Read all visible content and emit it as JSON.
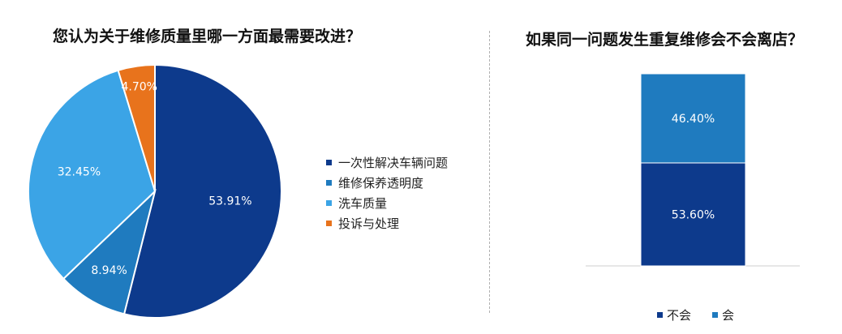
{
  "chart_data": [
    {
      "type": "pie",
      "title": "您认为关于维修质量里哪一方面最需要改进？",
      "categories": [
        "一次性解决车辆问题",
        "维修保养透明度",
        "洗车质量",
        "投诉与处理"
      ],
      "values": [
        53.91,
        8.94,
        32.45,
        4.7
      ],
      "value_labels": [
        "53.91%",
        "8.94%",
        "32.45%",
        "4.70%"
      ],
      "colors": [
        "#0d3a8c",
        "#1f7bbf",
        "#3ba4e6",
        "#e8731c"
      ],
      "legend_position": "right"
    },
    {
      "type": "bar",
      "stacked": true,
      "title": "如果同一问题发生重复维修会不会离店？",
      "categories": [
        ""
      ],
      "series": [
        {
          "name": "不会",
          "values": [
            53.6
          ],
          "label": "53.60%",
          "color": "#0d3a8c"
        },
        {
          "name": "会",
          "values": [
            46.4
          ],
          "label": "46.40%",
          "color": "#1f7bbf"
        }
      ],
      "ylim": [
        0,
        100
      ],
      "legend_position": "bottom",
      "grid": false
    }
  ]
}
